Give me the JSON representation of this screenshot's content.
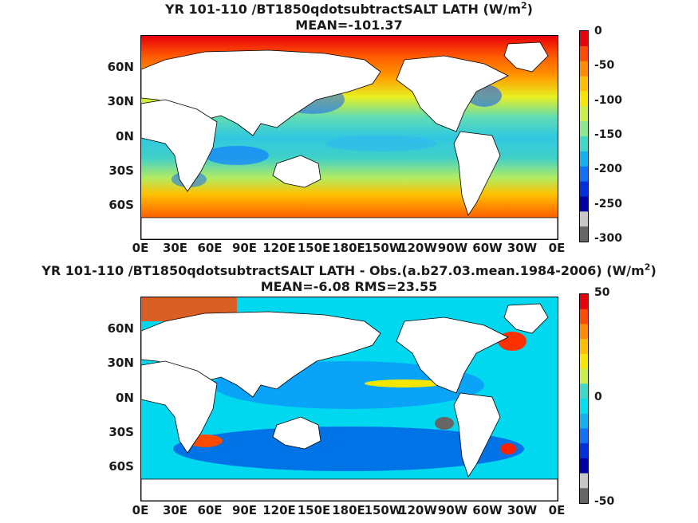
{
  "panels": [
    {
      "title_line1": "YR 101-110 /BT1850qdotsubtractSALT  LATH (W/m",
      "title_sup": "2",
      "title_tail": ")",
      "title_line2": "MEAN=-101.37",
      "colorbar_ticks": [
        "0",
        "-50",
        "-100",
        "-150",
        "-200",
        "-250",
        "-300"
      ],
      "colors": [
        "#e8000b",
        "#ff4a00",
        "#ff8a00",
        "#ffbe00",
        "#f5e600",
        "#c8f04a",
        "#8ce88c",
        "#40d8c8",
        "#10b4f0",
        "#1070ff",
        "#0030e0",
        "#0000a8",
        "#c8c8c8",
        "#666666"
      ]
    },
    {
      "title_line1": "YR 101-110 /BT1850qdotsubtractSALT LATH - Obs.(a.b27.03.mean.1984-2006) (W/m",
      "title_sup": "2",
      "title_tail": ")",
      "title_line2": "MEAN=-6.08 RMS=23.55",
      "colorbar_ticks": [
        "50",
        "0",
        "-50"
      ],
      "colors": [
        "#e8000b",
        "#ff4a00",
        "#ff8a00",
        "#ffbe00",
        "#f5e600",
        "#c8f04a",
        "#40d8c8",
        "#00e0f0",
        "#10b4f0",
        "#1070ff",
        "#0030e0",
        "#0000a8",
        "#c8c8c8",
        "#666666"
      ]
    }
  ],
  "axes": {
    "y_ticks": [
      "60N",
      "30N",
      "0N",
      "30S",
      "60S"
    ],
    "x_ticks": [
      "0E",
      "30E",
      "60E",
      "90E",
      "120E",
      "150E",
      "180E",
      "150W",
      "120W",
      "90W",
      "60W",
      "30W",
      "0E"
    ]
  }
}
